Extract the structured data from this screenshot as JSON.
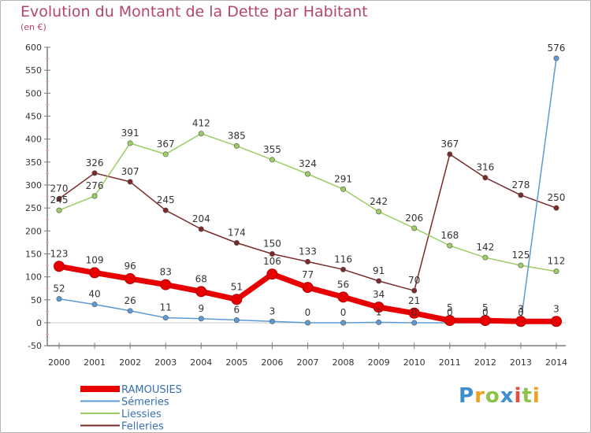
{
  "title": "Evolution du Montant de la Dette par Habitant",
  "subtitle": "(en €)",
  "logo": "Proxiti",
  "chart_data": {
    "type": "line",
    "title": "Evolution du Montant de la Dette par Habitant",
    "ylabel": "(en €)",
    "xlabel": "",
    "ylim": [
      -50,
      600
    ],
    "yticks": [
      -50,
      0,
      50,
      100,
      150,
      200,
      250,
      300,
      350,
      400,
      450,
      500,
      550,
      600
    ],
    "grid": false,
    "legend": "bottom-left",
    "x": [
      "2000",
      "2001",
      "2002",
      "2003",
      "2004",
      "2005",
      "2006",
      "2007",
      "2008",
      "2009",
      "2010",
      "2011",
      "2012",
      "2013",
      "2014"
    ],
    "series": [
      {
        "name": "RAMOUSIES",
        "color": "#e80000",
        "labels": true,
        "values": [
          123,
          109,
          96,
          83,
          68,
          51,
          106,
          77,
          56,
          34,
          21,
          5,
          5,
          3,
          3
        ]
      },
      {
        "name": "Sémeries",
        "color": "#5b9bd5",
        "labels": true,
        "values": [
          52,
          40,
          26,
          11,
          9,
          6,
          3,
          0,
          0,
          1,
          0,
          0,
          0,
          0,
          576
        ]
      },
      {
        "name": "Liessies",
        "color": "#9ccc65",
        "labels": true,
        "values": [
          245,
          276,
          391,
          367,
          412,
          385,
          355,
          324,
          291,
          242,
          206,
          168,
          142,
          125,
          112
        ]
      },
      {
        "name": "Felleries",
        "color": "#7b2a2a",
        "labels": true,
        "values": [
          270,
          326,
          307,
          245,
          204,
          174,
          150,
          133,
          116,
          91,
          70,
          367,
          316,
          278,
          250
        ]
      }
    ]
  }
}
